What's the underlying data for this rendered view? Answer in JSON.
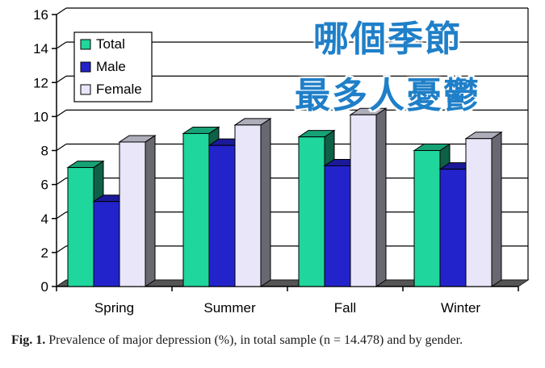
{
  "chart_data": {
    "type": "bar",
    "categories": [
      "Spring",
      "Summer",
      "Fall",
      "Winter"
    ],
    "series": [
      {
        "name": "Total",
        "values": [
          7.0,
          9.0,
          8.8,
          8.0
        ],
        "color": "#1fd69c"
      },
      {
        "name": "Male",
        "values": [
          5.0,
          8.3,
          7.1,
          6.9
        ],
        "color": "#2323cc"
      },
      {
        "name": "Female",
        "values": [
          8.5,
          9.5,
          10.1,
          8.7
        ],
        "color": "#e8e6f8"
      }
    ],
    "ylim": [
      0,
      16
    ],
    "yticks": [
      0,
      2,
      4,
      6,
      8,
      10,
      12,
      14,
      16
    ],
    "grid": true,
    "legend": "top-left"
  },
  "overlay_text": {
    "line1": "哪個季節",
    "line2": "最多人憂鬱"
  },
  "caption": {
    "label": "Fig. 1.",
    "text": "Prevalence of major depression (%), in total sample (n = 14.478) and by gender."
  }
}
